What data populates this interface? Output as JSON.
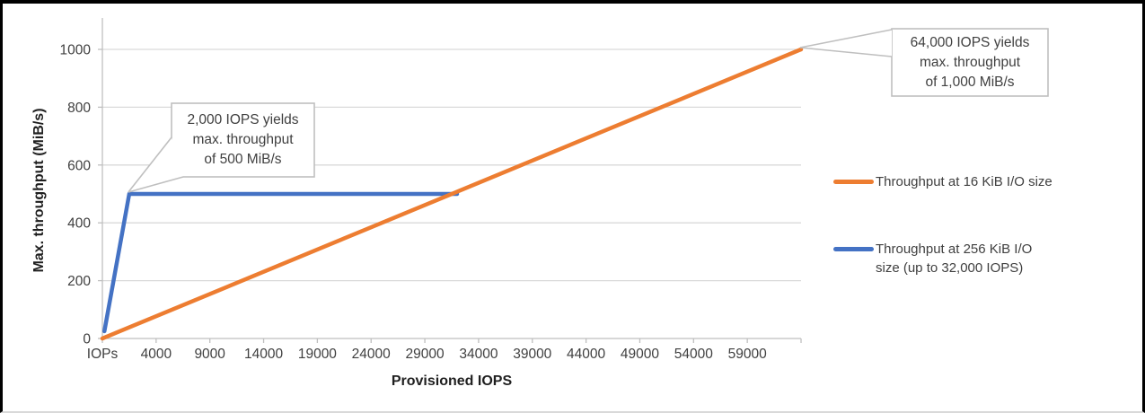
{
  "chart_data": {
    "type": "line",
    "title": "",
    "xlabel": "Provisioned IOPS",
    "ylabel": "Max. throughput (MiB/s)",
    "x_tick_labels": [
      "IOPs",
      "4000",
      "9000",
      "14000",
      "19000",
      "24000",
      "29000",
      "34000",
      "39000",
      "44000",
      "49000",
      "54000",
      "59000",
      ""
    ],
    "y_ticks": [
      0,
      200,
      400,
      600,
      800,
      1000
    ],
    "ylim": [
      0,
      1000
    ],
    "xlim_iops": [
      0,
      64000
    ],
    "grid": "horizontal",
    "legend_position": "right",
    "series": [
      {
        "name": "Throughput at 16 KiB I/O size",
        "color": "#ED7D31",
        "points": [
          [
            0,
            0
          ],
          [
            64000,
            1000
          ]
        ]
      },
      {
        "name": "Throughput at 256 KiB I/O size (up to 32,000 IOPS)",
        "color": "#4472C4",
        "points": [
          [
            150,
            25
          ],
          [
            2000,
            500
          ],
          [
            32000,
            500
          ]
        ]
      }
    ],
    "annotations": [
      {
        "text": "2,000 IOPS yields\nmax. throughput\nof 500 MiB/s",
        "anchor_x": 2000,
        "anchor_y": 500
      },
      {
        "text": "64,000 IOPS yields\nmax. throughput\nof 1,000 MiB/s",
        "anchor_x": 64000,
        "anchor_y": 1000
      }
    ]
  },
  "legend": {
    "items": [
      {
        "label": "Throughput at 16 KiB I/O size",
        "color": "#ED7D31"
      },
      {
        "label": "Throughput at 256 KiB I/O\nsize (up to 32,000 IOPS)",
        "color": "#4472C4"
      }
    ]
  },
  "colors": {
    "orange": "#ED7D31",
    "blue": "#4472C4",
    "gridline": "#D9D9D9",
    "axis": "#BFBFBF",
    "callout_border": "#BFBFBF",
    "tick_text": "#404040",
    "title_text": "#1F1F1F",
    "frame_border": "#000000"
  }
}
